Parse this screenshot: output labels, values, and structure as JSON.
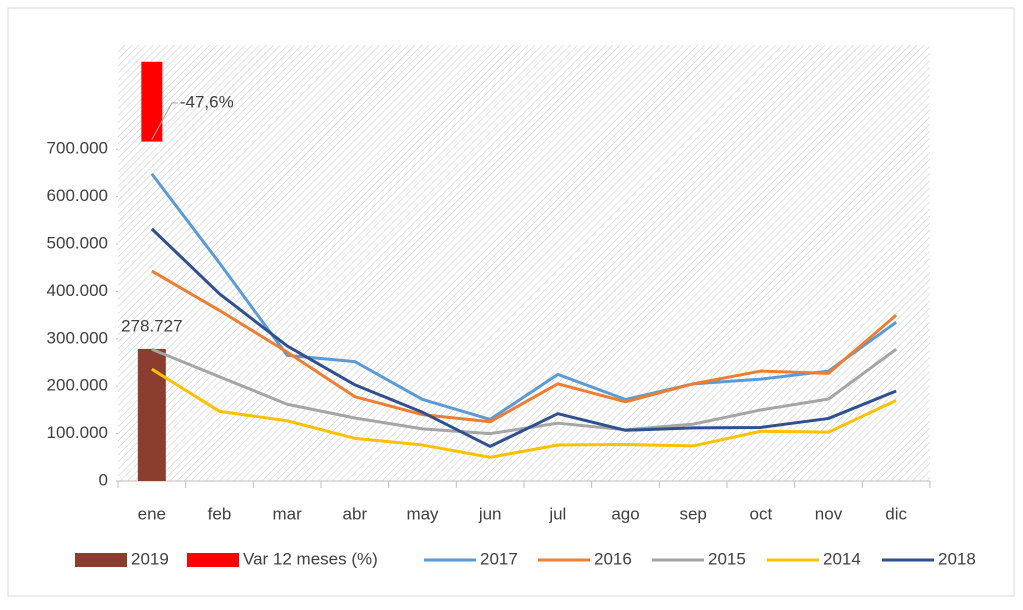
{
  "chart_data": {
    "type": "line",
    "categories": [
      "ene",
      "feb",
      "mar",
      "abr",
      "may",
      "jun",
      "jul",
      "ago",
      "sep",
      "oct",
      "nov",
      "dic"
    ],
    "ylim": [
      0,
      920000
    ],
    "yticks": [
      0,
      {
        "value": 100000,
        "label": "100.000"
      },
      {
        "value": 200000,
        "label": "200.000"
      },
      {
        "value": 300000,
        "label": "300.000"
      },
      {
        "value": 400000,
        "label": "400.000"
      },
      {
        "value": 500000,
        "label": "500.000"
      },
      {
        "value": 600000,
        "label": "600.000"
      },
      {
        "value": 700000,
        "label": "700.000"
      }
    ],
    "y2lim": [
      -250,
      10
    ],
    "legend": "bottom",
    "series": [
      {
        "name": "2019",
        "type": "bar",
        "color": "#8b3e2f",
        "values": [
          278727,
          null,
          null,
          null,
          null,
          null,
          null,
          null,
          null,
          null,
          null,
          null
        ],
        "value_labels": [
          "278.727",
          null,
          null,
          null,
          null,
          null,
          null,
          null,
          null,
          null,
          null,
          null
        ]
      },
      {
        "name": "Var 12 meses (%)",
        "type": "bar",
        "axis": "y2",
        "color": "#ff0000",
        "values": [
          -47.6,
          null,
          null,
          null,
          null,
          null,
          null,
          null,
          null,
          null,
          null,
          null
        ],
        "value_labels": [
          "-47,6%",
          null,
          null,
          null,
          null,
          null,
          null,
          null,
          null,
          null,
          null,
          null
        ]
      },
      {
        "name": "2017",
        "type": "line",
        "color": "#5b9bd5",
        "values": [
          648000,
          460000,
          265000,
          252000,
          172000,
          130000,
          225000,
          172000,
          205000,
          215000,
          232000,
          335000
        ]
      },
      {
        "name": "2016",
        "type": "line",
        "color": "#ed7d31",
        "values": [
          443000,
          360000,
          272000,
          178000,
          140000,
          125000,
          205000,
          167000,
          205000,
          232000,
          227000,
          350000
        ]
      },
      {
        "name": "2015",
        "type": "line",
        "color": "#a5a5a5",
        "values": [
          278000,
          220000,
          162000,
          133000,
          110000,
          100000,
          122000,
          108000,
          120000,
          150000,
          173000,
          278000
        ]
      },
      {
        "name": "2014",
        "type": "line",
        "color": "#ffc000",
        "values": [
          236000,
          147000,
          127000,
          90000,
          76000,
          50000,
          76000,
          77000,
          74000,
          105000,
          103000,
          170000
        ]
      },
      {
        "name": "2018",
        "type": "line",
        "color": "#2f4f8f",
        "values": [
          532000,
          395000,
          285000,
          203000,
          145000,
          73000,
          142000,
          107000,
          112000,
          113000,
          132000,
          190000
        ]
      }
    ]
  }
}
